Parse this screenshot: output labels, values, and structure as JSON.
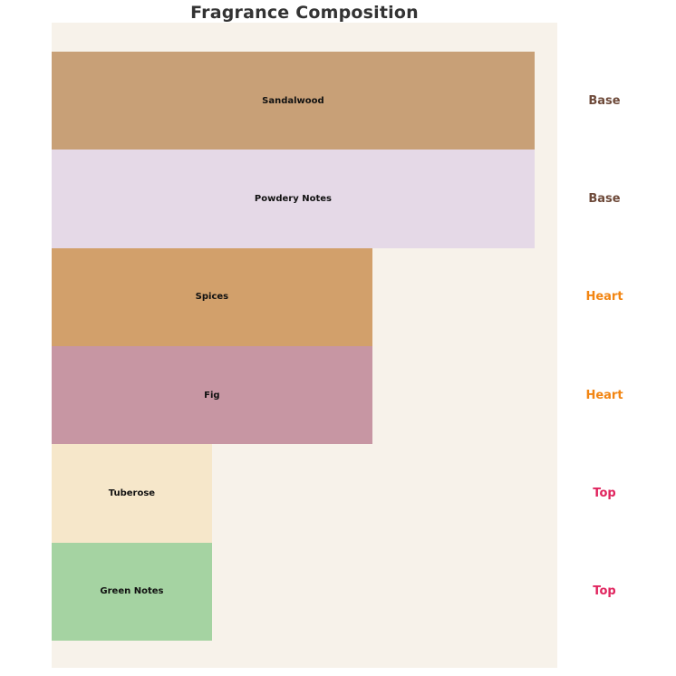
{
  "title": "Fragrance Composition",
  "colors": {
    "page_bg": "#ffffff",
    "panel_bg": "#f7f2ea",
    "title_text": "#333333",
    "bar_label_text": "#111111",
    "base_note": "#6e4a3a",
    "heart_note": "#f28512",
    "top_note": "#e0245e"
  },
  "chart_data": {
    "type": "bar",
    "orientation": "horizontal",
    "title": "Fragrance Composition",
    "xlabel": "",
    "ylabel": "",
    "axes_visible": false,
    "grid": false,
    "legend": false,
    "xlim": [
      0,
      3.15
    ],
    "categories": [
      "Sandalwood",
      "Powdery Notes",
      "Spices",
      "Fig",
      "Tuberose",
      "Green Notes"
    ],
    "values": [
      3,
      3,
      2,
      2,
      1,
      1
    ],
    "group_labels": [
      "Base",
      "Base",
      "Heart",
      "Heart",
      "Top",
      "Top"
    ],
    "group_label_position": "right",
    "bars": [
      {
        "label": "Sandalwood",
        "value": 3,
        "width_pct": "95.5%",
        "color": "#c8a077",
        "note_type": "Base",
        "note_color": "#6e4a3a"
      },
      {
        "label": "Powdery Notes",
        "value": 3,
        "width_pct": "95.5%",
        "color": "#e5d9e7",
        "note_type": "Base",
        "note_color": "#6e4a3a"
      },
      {
        "label": "Spices",
        "value": 2,
        "width_pct": "63.4%",
        "color": "#d2a06b",
        "note_type": "Heart",
        "note_color": "#f28512"
      },
      {
        "label": "Fig",
        "value": 2,
        "width_pct": "63.4%",
        "color": "#c796a3",
        "note_type": "Heart",
        "note_color": "#f28512"
      },
      {
        "label": "Tuberose",
        "value": 1,
        "width_pct": "31.7%",
        "color": "#f6e7ca",
        "note_type": "Top",
        "note_color": "#e0245e"
      },
      {
        "label": "Green Notes",
        "value": 1,
        "width_pct": "31.7%",
        "color": "#a5d3a2",
        "note_type": "Top",
        "note_color": "#e0245e"
      }
    ]
  }
}
